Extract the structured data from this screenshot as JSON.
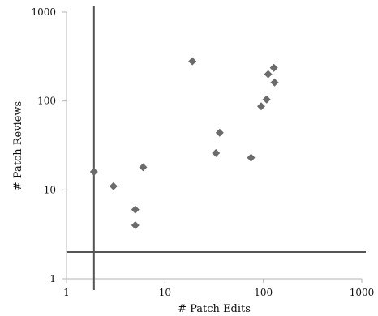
{
  "chart_data": {
    "type": "scatter",
    "xlabel": "# Patch Edits",
    "ylabel": "# Patch Reviews",
    "x_scale": "log",
    "y_scale": "log",
    "xlim": [
      1,
      1000
    ],
    "ylim": [
      1,
      1000
    ],
    "x_ticks": [
      "1",
      "10",
      "100",
      "1000"
    ],
    "y_ticks": [
      "1",
      "10",
      "100",
      "1000"
    ],
    "grid": false,
    "marker": "diamond",
    "colors": {
      "marker": "#6b6b6b",
      "axis": "#b5b5b5",
      "reference_line": "#555555"
    },
    "reference_lines": {
      "vertical_x": 1.9,
      "horizontal_y": 2.0
    },
    "points": [
      {
        "x": 1.9,
        "y": 16
      },
      {
        "x": 3,
        "y": 11
      },
      {
        "x": 5,
        "y": 6
      },
      {
        "x": 5,
        "y": 4
      },
      {
        "x": 6,
        "y": 18
      },
      {
        "x": 19,
        "y": 280
      },
      {
        "x": 33,
        "y": 26
      },
      {
        "x": 36,
        "y": 44
      },
      {
        "x": 75,
        "y": 23
      },
      {
        "x": 95,
        "y": 87
      },
      {
        "x": 108,
        "y": 104
      },
      {
        "x": 112,
        "y": 200
      },
      {
        "x": 128,
        "y": 236
      },
      {
        "x": 130,
        "y": 162
      }
    ]
  }
}
